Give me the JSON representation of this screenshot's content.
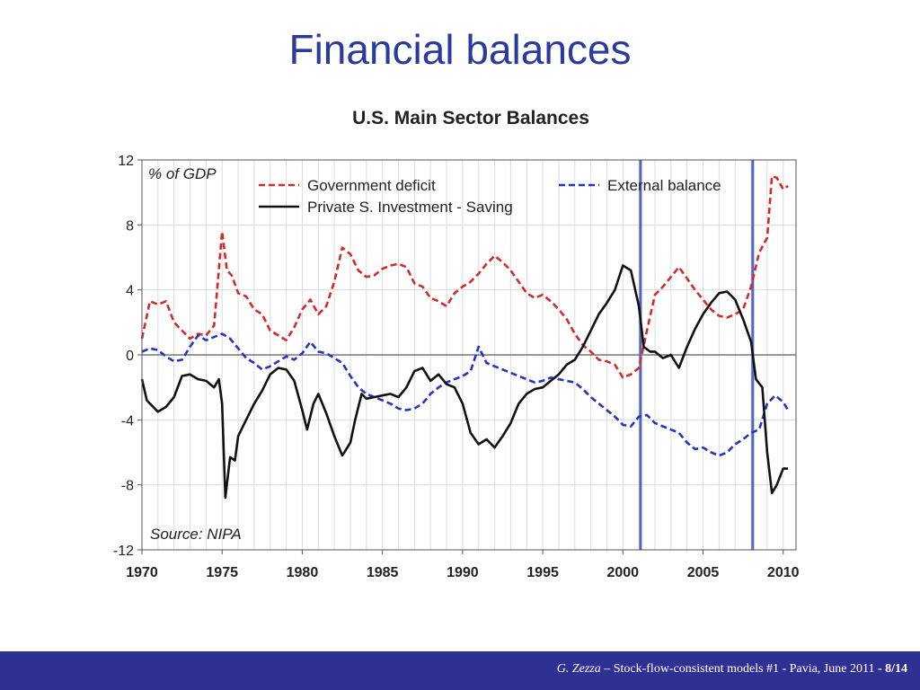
{
  "slide": {
    "title": "Financial balances"
  },
  "footer": {
    "author": "G. Zezza",
    "sep": " – ",
    "talk": "Stock-flow-consistent models #1 - Pavia, June 2011",
    "page_sep": " - ",
    "page": "8/14",
    "bg_color": "#2e3192"
  },
  "chart_data": {
    "type": "line",
    "title": "U.S. Main Sector Balances",
    "unit_label": "% of GDP",
    "source_note": "Source: NIPA",
    "xlim": [
      1970,
      2010.8
    ],
    "ylim": [
      -12,
      12
    ],
    "x_ticks": [
      1970,
      1975,
      1980,
      1985,
      1990,
      1995,
      2000,
      2005,
      2010
    ],
    "y_ticks": [
      12,
      8,
      4,
      0,
      -4,
      -8,
      -12
    ],
    "grid": true,
    "legend_position": "top",
    "vertical_markers": [
      2001.1,
      2008.1
    ],
    "series": [
      {
        "name": "Government deficit",
        "color": "#d42a2a",
        "style": "dashed",
        "x": [
          1970,
          1970.5,
          1971,
          1971.5,
          1972,
          1972.5,
          1973,
          1973.5,
          1974,
          1974.5,
          1975,
          1975.3,
          1975.6,
          1976,
          1976.5,
          1977,
          1977.5,
          1978,
          1978.5,
          1979,
          1979.5,
          1980,
          1980.5,
          1981,
          1981.5,
          1982,
          1982.5,
          1983,
          1983.5,
          1984,
          1984.5,
          1985,
          1985.5,
          1986,
          1986.5,
          1987,
          1987.5,
          1988,
          1988.5,
          1989,
          1989.5,
          1990,
          1990.5,
          1991,
          1991.5,
          1992,
          1992.5,
          1993,
          1993.5,
          1994,
          1994.5,
          1995,
          1995.5,
          1996,
          1996.5,
          1997,
          1997.5,
          1998,
          1998.5,
          1999,
          1999.5,
          2000,
          2000.5,
          2001,
          2001.5,
          2002,
          2002.5,
          2003,
          2003.5,
          2004,
          2004.5,
          2005,
          2005.5,
          2006,
          2006.5,
          2007,
          2007.5,
          2008,
          2008.5,
          2009,
          2009.3,
          2009.6,
          2010,
          2010.3
        ],
        "y": [
          1.0,
          3.3,
          3.1,
          3.3,
          2.0,
          1.5,
          1.0,
          1.3,
          1.2,
          1.8,
          7.6,
          5.2,
          4.9,
          3.8,
          3.6,
          2.8,
          2.5,
          1.5,
          1.2,
          0.9,
          1.7,
          2.8,
          3.4,
          2.5,
          3.0,
          4.5,
          6.6,
          6.2,
          5.2,
          4.8,
          4.9,
          5.3,
          5.5,
          5.6,
          5.4,
          4.4,
          4.2,
          3.5,
          3.3,
          3.0,
          3.8,
          4.2,
          4.5,
          5.0,
          5.6,
          6.1,
          5.7,
          5.2,
          4.5,
          3.8,
          3.5,
          3.7,
          3.3,
          2.8,
          2.2,
          1.3,
          0.6,
          0.2,
          -0.3,
          -0.4,
          -0.6,
          -1.4,
          -1.2,
          -0.8,
          1.5,
          3.7,
          4.2,
          4.8,
          5.4,
          4.7,
          4.0,
          3.4,
          2.8,
          2.4,
          2.3,
          2.5,
          2.8,
          4.2,
          6.3,
          7.2,
          11.0,
          10.9,
          10.2,
          10.4
        ]
      },
      {
        "name": "External balance",
        "color": "#2234c8",
        "style": "dashed",
        "x": [
          1970,
          1970.5,
          1971,
          1971.5,
          1972,
          1972.5,
          1973,
          1973.5,
          1974,
          1974.5,
          1975,
          1975.5,
          1976,
          1976.5,
          1977,
          1977.5,
          1978,
          1978.5,
          1979,
          1979.5,
          1980,
          1980.5,
          1981,
          1981.5,
          1982,
          1982.5,
          1983,
          1983.5,
          1984,
          1984.5,
          1985,
          1985.5,
          1986,
          1986.5,
          1987,
          1987.5,
          1988,
          1988.5,
          1989,
          1989.5,
          1990,
          1990.5,
          1991,
          1991.5,
          1992,
          1992.5,
          1993,
          1993.5,
          1994,
          1994.5,
          1995,
          1995.5,
          1996,
          1996.5,
          1997,
          1997.5,
          1998,
          1998.5,
          1999,
          1999.5,
          2000,
          2000.5,
          2001,
          2001.5,
          2002,
          2002.5,
          2003,
          2003.5,
          2004,
          2004.5,
          2005,
          2005.5,
          2006,
          2006.5,
          2007,
          2007.5,
          2008,
          2008.5,
          2009,
          2009.5,
          2010,
          2010.3
        ],
        "y": [
          0.2,
          0.4,
          0.3,
          -0.1,
          -0.4,
          -0.3,
          0.5,
          1.2,
          0.9,
          1.1,
          1.3,
          1.0,
          0.4,
          -0.2,
          -0.5,
          -0.9,
          -0.7,
          -0.4,
          -0.1,
          -0.3,
          0.1,
          0.8,
          0.2,
          0.1,
          -0.2,
          -0.5,
          -1.3,
          -2.0,
          -2.4,
          -2.6,
          -2.8,
          -3.0,
          -3.3,
          -3.4,
          -3.3,
          -3.0,
          -2.4,
          -2.0,
          -1.7,
          -1.5,
          -1.3,
          -1.0,
          0.5,
          -0.5,
          -0.7,
          -0.9,
          -1.1,
          -1.3,
          -1.5,
          -1.7,
          -1.6,
          -1.4,
          -1.5,
          -1.6,
          -1.7,
          -2.1,
          -2.6,
          -3.0,
          -3.4,
          -3.8,
          -4.3,
          -4.4,
          -3.8,
          -3.7,
          -4.2,
          -4.4,
          -4.6,
          -4.8,
          -5.4,
          -5.8,
          -5.7,
          -6.0,
          -6.2,
          -6.0,
          -5.5,
          -5.2,
          -4.8,
          -4.6,
          -3.0,
          -2.5,
          -2.9,
          -3.4
        ]
      },
      {
        "name": "Private S. Investment - Saving",
        "color": "#111111",
        "style": "solid",
        "x": [
          1970,
          1970.3,
          1970.7,
          1971,
          1971.5,
          1972,
          1972.5,
          1973,
          1973.5,
          1974,
          1974.5,
          1974.8,
          1975,
          1975.2,
          1975.5,
          1975.8,
          1976,
          1976.5,
          1977,
          1977.5,
          1978,
          1978.5,
          1979,
          1979.5,
          1980,
          1980.3,
          1980.7,
          1981,
          1981.5,
          1982,
          1982.5,
          1983,
          1983.3,
          1983.7,
          1984,
          1984.5,
          1985,
          1985.5,
          1986,
          1986.5,
          1987,
          1987.5,
          1988,
          1988.5,
          1989,
          1989.5,
          1990,
          1990.5,
          1991,
          1991.5,
          1992,
          1992.5,
          1993,
          1993.5,
          1994,
          1994.5,
          1995,
          1995.5,
          1996,
          1996.5,
          1997,
          1997.5,
          1998,
          1998.5,
          1999,
          1999.5,
          2000,
          2000.5,
          2001,
          2001.3,
          2001.7,
          2002,
          2002.5,
          2003,
          2003.5,
          2004,
          2004.5,
          2005,
          2005.5,
          2006,
          2006.5,
          2007,
          2007.5,
          2008,
          2008.3,
          2008.7,
          2009,
          2009.3,
          2009.6,
          2010,
          2010.3
        ],
        "y": [
          -1.5,
          -2.8,
          -3.2,
          -3.5,
          -3.2,
          -2.6,
          -1.3,
          -1.2,
          -1.5,
          -1.6,
          -2.0,
          -1.5,
          -3.0,
          -8.8,
          -6.3,
          -6.5,
          -5.0,
          -4.0,
          -3.0,
          -2.2,
          -1.2,
          -0.8,
          -0.9,
          -1.6,
          -3.4,
          -4.6,
          -3.0,
          -2.4,
          -3.6,
          -5.0,
          -6.2,
          -5.4,
          -4.0,
          -2.4,
          -2.7,
          -2.6,
          -2.5,
          -2.4,
          -2.6,
          -2.0,
          -1.0,
          -0.8,
          -1.6,
          -1.2,
          -1.8,
          -2.0,
          -3.0,
          -4.8,
          -5.5,
          -5.2,
          -5.7,
          -5.0,
          -4.2,
          -3.0,
          -2.4,
          -2.1,
          -2.0,
          -1.6,
          -1.2,
          -0.6,
          -0.3,
          0.5,
          1.5,
          2.5,
          3.2,
          4.0,
          5.5,
          5.2,
          3.0,
          0.5,
          0.2,
          0.2,
          -0.2,
          0.0,
          -0.8,
          0.5,
          1.6,
          2.5,
          3.2,
          3.8,
          3.9,
          3.4,
          2.2,
          0.8,
          -1.5,
          -2.0,
          -6.0,
          -8.5,
          -8.0,
          -7.0,
          -7.0
        ]
      }
    ]
  }
}
